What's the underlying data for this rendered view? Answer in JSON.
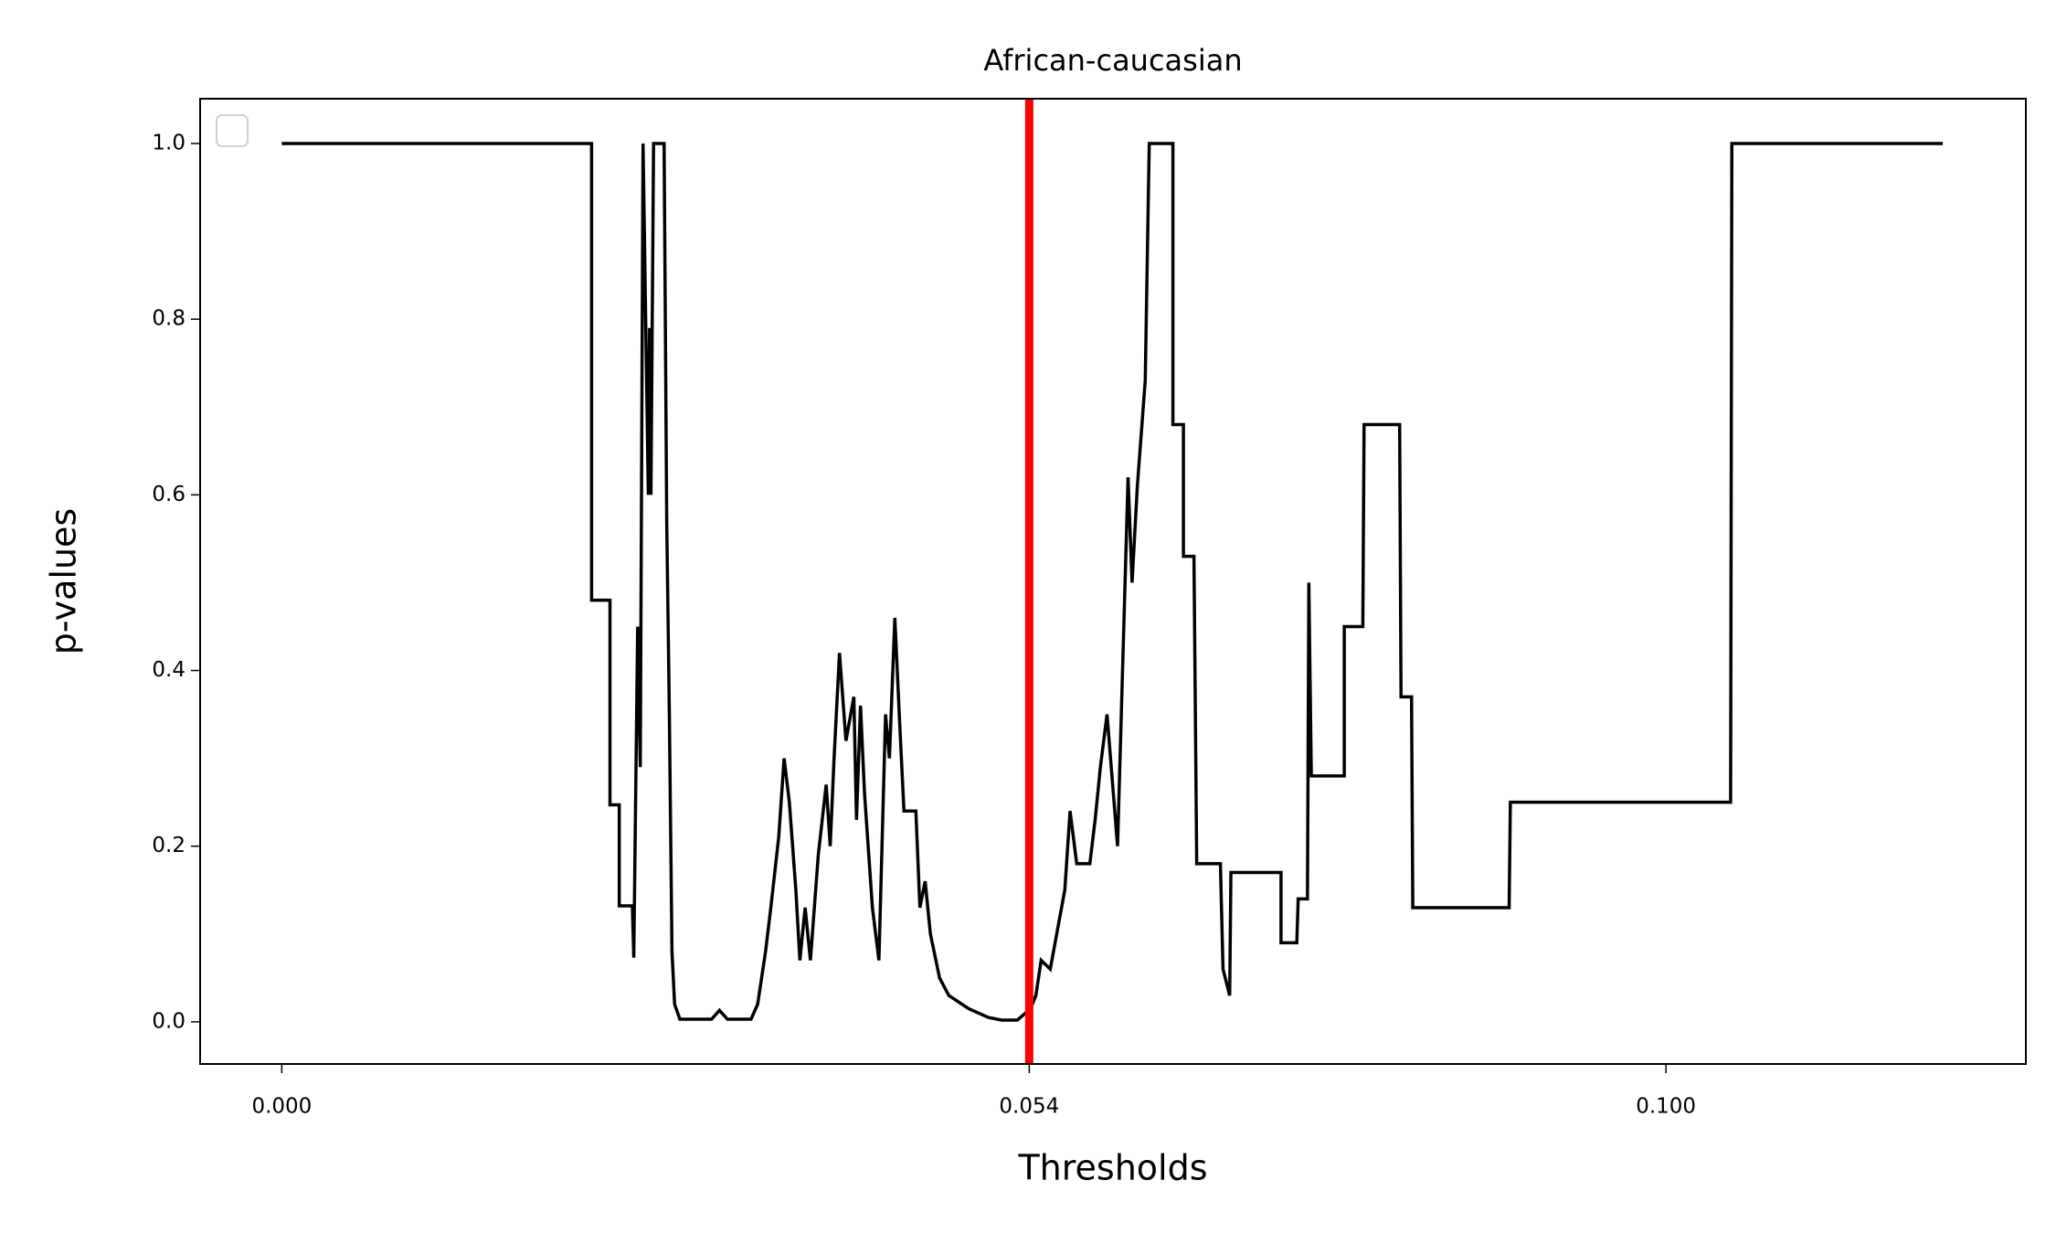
{
  "chart_data": {
    "type": "line",
    "title": "African-caucasian",
    "x_label": "Thresholds",
    "y_label": "p-values",
    "xlim": [
      -0.0059,
      0.126
    ],
    "ylim": [
      -0.048,
      1.051
    ],
    "xticks": [
      {
        "value": 0,
        "label": "0.000"
      },
      {
        "value": 0.054,
        "label": "0.054"
      },
      {
        "value": 0.1,
        "label": "0.100"
      }
    ],
    "yticks": [
      {
        "value": 0,
        "label": "0.0"
      },
      0.2,
      0.4,
      0.6,
      0.8,
      {
        "value": 1,
        "label": "1.0"
      }
    ],
    "grid": false,
    "legend": "upper left",
    "vline": {
      "x": 0.054,
      "color": "#ff0000"
    },
    "x": [
      0,
      0.02238,
      0.02238,
      0.02371,
      0.02371,
      0.02438,
      0.02438,
      0.02533,
      0.02543,
      0.02571,
      0.0259,
      0.0261,
      0.02648,
      0.02657,
      0.02667,
      0.02686,
      0.02762,
      0.02781,
      0.028,
      0.02819,
      0.02838,
      0.02876,
      0.03105,
      0.03162,
      0.0322,
      0.0339,
      0.03438,
      0.03495,
      0.03533,
      0.0359,
      0.03629,
      0.03667,
      0.03714,
      0.03743,
      0.03781,
      0.03819,
      0.03876,
      0.03933,
      0.03962,
      0.0399,
      0.04029,
      0.04076,
      0.04133,
      0.04152,
      0.04181,
      0.0421,
      0.04267,
      0.04314,
      0.04362,
      0.0439,
      0.04429,
      0.04467,
      0.04495,
      0.04581,
      0.0461,
      0.04648,
      0.04686,
      0.04752,
      0.04819,
      0.04962,
      0.05105,
      0.052,
      0.05314,
      0.0541,
      0.05448,
      0.05486,
      0.05552,
      0.0561,
      0.05657,
      0.05695,
      0.05743,
      0.05838,
      0.05876,
      0.05914,
      0.05962,
      0.06038,
      0.06076,
      0.06114,
      0.06143,
      0.06181,
      0.06238,
      0.06267,
      0.06438,
      0.06438,
      0.06514,
      0.06514,
      0.0659,
      0.0661,
      0.06781,
      0.068,
      0.06848,
      0.06857,
      0.07219,
      0.07219,
      0.07333,
      0.07343,
      0.0741,
      0.0742,
      0.07438,
      0.07676,
      0.07676,
      0.0781,
      0.07819,
      0.08076,
      0.08086,
      0.08162,
      0.08171,
      0.08867,
      0.08876,
      0.10467,
      0.10476,
      0.12
    ],
    "series": [
      {
        "color": "#000000",
        "values": [
          1,
          1,
          0.48,
          0.48,
          0.247,
          0.247,
          0.132,
          0.132,
          0.073,
          0.45,
          0.29,
          1,
          0.6,
          0.79,
          0.6,
          1,
          1,
          0.57,
          0.35,
          0.08,
          0.02,
          0.003,
          0.003,
          0.013,
          0.003,
          0.003,
          0.02,
          0.08,
          0.13,
          0.21,
          0.3,
          0.25,
          0.15,
          0.07,
          0.13,
          0.07,
          0.19,
          0.27,
          0.2,
          0.3,
          0.42,
          0.32,
          0.37,
          0.23,
          0.36,
          0.26,
          0.13,
          0.07,
          0.35,
          0.3,
          0.46,
          0.33,
          0.24,
          0.24,
          0.13,
          0.16,
          0.1,
          0.05,
          0.03,
          0.015,
          0.005,
          0.002,
          0.002,
          0.015,
          0.03,
          0.07,
          0.06,
          0.11,
          0.15,
          0.24,
          0.18,
          0.18,
          0.23,
          0.29,
          0.35,
          0.2,
          0.41,
          0.62,
          0.5,
          0.61,
          0.73,
          1,
          1,
          0.68,
          0.68,
          0.53,
          0.53,
          0.18,
          0.18,
          0.06,
          0.03,
          0.17,
          0.17,
          0.09,
          0.09,
          0.14,
          0.14,
          0.5,
          0.28,
          0.28,
          0.45,
          0.45,
          0.68,
          0.68,
          0.37,
          0.37,
          0.13,
          0.13,
          0.25,
          0.25,
          1,
          1
        ]
      }
    ]
  }
}
